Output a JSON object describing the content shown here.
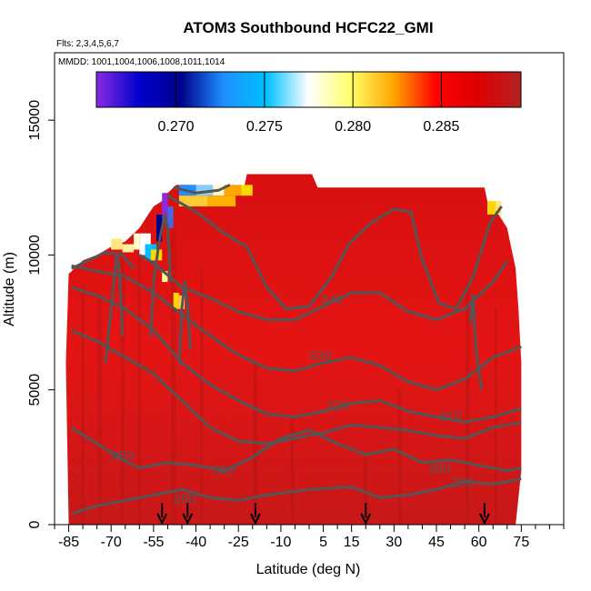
{
  "chart_data": {
    "type": "heatmap",
    "title": "ATOM3 Southbound HCFC22_GMI",
    "flights_label": "Flts: 2,3,4,5,6,7",
    "mmdd_label": "MMDD: 1001,1004,1006,1008,1011,1014",
    "xlabel": "Latitude (deg N)",
    "ylabel": "Altitude (m)",
    "xlim": [
      -90,
      90
    ],
    "ylim": [
      0,
      17500
    ],
    "x_ticks": [
      -85,
      -70,
      -55,
      -40,
      -25,
      -10,
      5,
      15,
      30,
      45,
      60,
      75
    ],
    "x_tick_labels": [
      "-85",
      "-70",
      "-55",
      "-40",
      "-25",
      "-10",
      "5",
      "15",
      "30",
      "45",
      "60",
      "75"
    ],
    "y_ticks": [
      0,
      5000,
      10000,
      15000
    ],
    "y_tick_labels": [
      "0",
      "5000",
      "10000",
      "15000"
    ],
    "colorbar": {
      "range": [
        0.2655,
        0.2895
      ],
      "ticks": [
        0.27,
        0.275,
        0.28,
        0.285
      ],
      "tick_labels": [
        "0.270",
        "0.275",
        "0.280",
        "0.285"
      ],
      "colors": [
        "#8a2be2",
        "#0000cd",
        "#00008b",
        "#1e90ff",
        "#00bfff",
        "#ffffff",
        "#ffff66",
        "#ffa500",
        "#ff0000",
        "#dd0000",
        "#b22222"
      ]
    },
    "contour_labels": [
      {
        "text": "340",
        "x": 8,
        "y": 8200
      },
      {
        "text": "330",
        "x": 4,
        "y": 6100
      },
      {
        "text": "320",
        "x": 10,
        "y": 4250
      },
      {
        "text": "310",
        "x": 50,
        "y": 3850
      },
      {
        "text": "300",
        "x": -30,
        "y": 1850
      },
      {
        "text": "300",
        "x": 46,
        "y": 1900
      },
      {
        "text": "290",
        "x": -44,
        "y": 800
      },
      {
        "text": "290",
        "x": 54,
        "y": 1400
      },
      {
        "text": "280",
        "x": -66,
        "y": 2400
      }
    ],
    "flight_arrows_lat": [
      -52,
      -43,
      -19,
      20,
      62
    ],
    "colors": {
      "fill_main": "#e01010",
      "contour": "#555555"
    }
  }
}
